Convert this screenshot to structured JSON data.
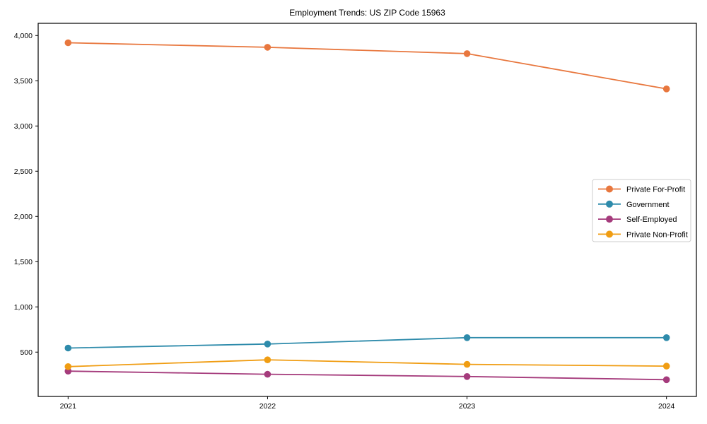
{
  "chart_data": {
    "type": "line",
    "title": "Employment Trends: US ZIP Code 15963",
    "xlabel": "",
    "ylabel": "",
    "x": [
      2021,
      2022,
      2023,
      2024
    ],
    "x_tick_labels": [
      "2021",
      "2022",
      "2023",
      "2024"
    ],
    "y_ticks": [
      500,
      1000,
      1500,
      2000,
      2500,
      3000,
      3500,
      4000
    ],
    "y_tick_labels": [
      "500",
      "1,000",
      "1,500",
      "2,000",
      "2,500",
      "3,000",
      "3,500",
      "4,000"
    ],
    "xlim": [
      2020.85,
      2024.15
    ],
    "ylim": [
      10,
      4135
    ],
    "grid": false,
    "legend_position": "center-right-inside",
    "frame": true,
    "series": [
      {
        "name": "Private For-Profit",
        "color": "#e8773e",
        "values": [
          3920,
          3870,
          3800,
          3410
        ]
      },
      {
        "name": "Government",
        "color": "#2e8bab",
        "values": [
          545,
          590,
          660,
          660
        ]
      },
      {
        "name": "Self-Employed",
        "color": "#a53b7c",
        "values": [
          290,
          255,
          230,
          195
        ]
      },
      {
        "name": "Private Non-Profit",
        "color": "#f09d13",
        "values": [
          340,
          415,
          365,
          345
        ]
      }
    ]
  }
}
